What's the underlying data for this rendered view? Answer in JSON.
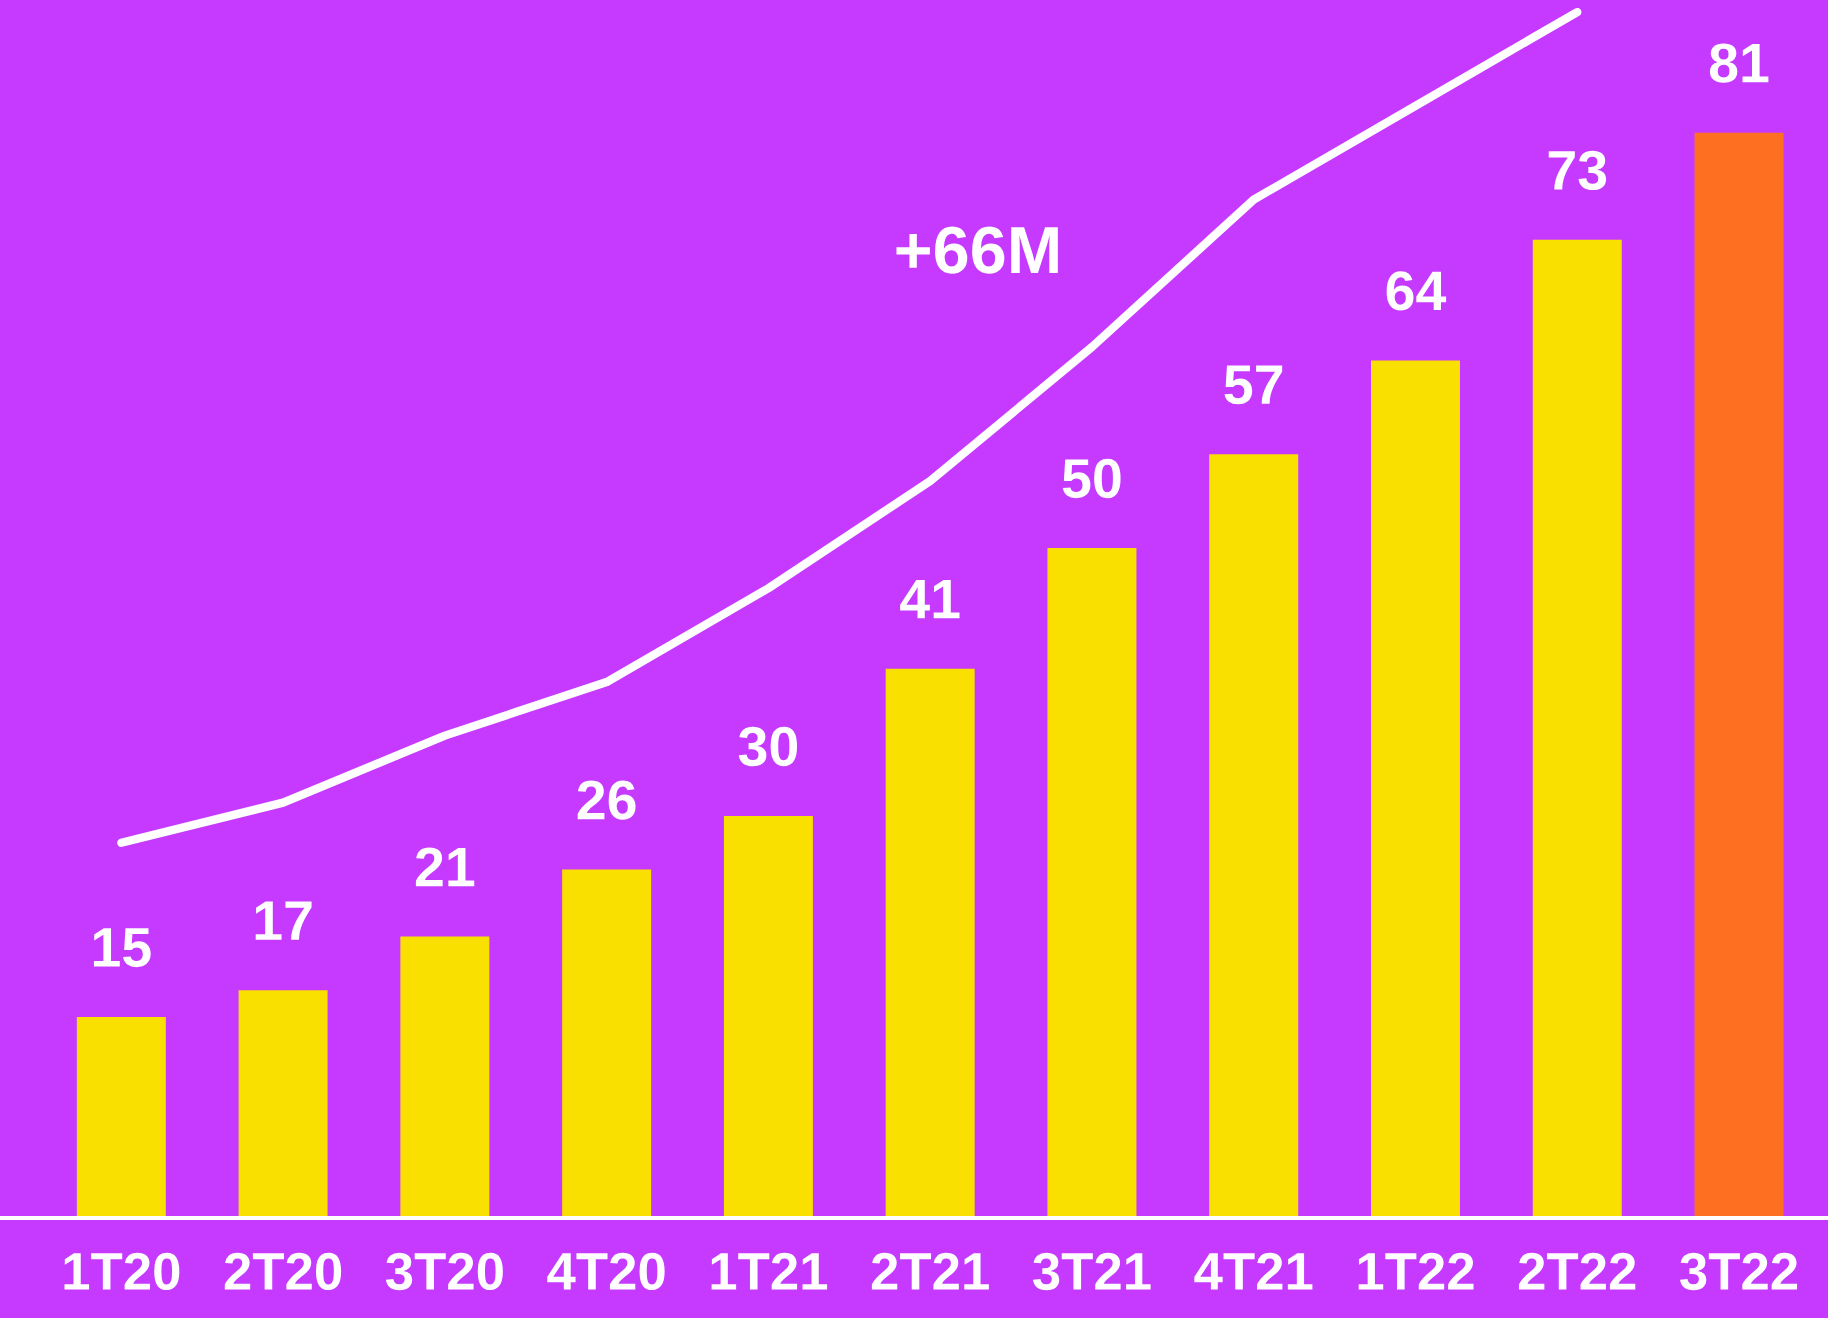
{
  "chart_data": {
    "type": "bar",
    "categories": [
      "1T20",
      "2T20",
      "3T20",
      "4T20",
      "1T21",
      "2T21",
      "3T21",
      "4T21",
      "1T22",
      "2T22",
      "3T22"
    ],
    "series": [
      {
        "colors": [
          "#f9e000",
          "#f9e000",
          "#f9e000",
          "#f9e000",
          "#f9e000",
          "#f9e000",
          "#f9e000",
          "#f9e000",
          "#f9e000",
          "#f9e000",
          "#ff6f22"
        ],
        "values": [
          15,
          17,
          21,
          26,
          30,
          41,
          50,
          57,
          64,
          73,
          81
        ],
        "value_labels": [
          "15",
          "17",
          "21",
          "26",
          "30",
          "41",
          "50",
          "57",
          "64",
          "73",
          "81"
        ]
      },
      {
        "type": "line",
        "color": "#ffffff",
        "values": [
          28,
          31,
          36,
          40,
          47,
          55,
          65,
          76,
          83,
          90,
          null
        ]
      }
    ],
    "annotations": [
      "+66M"
    ]
  }
}
